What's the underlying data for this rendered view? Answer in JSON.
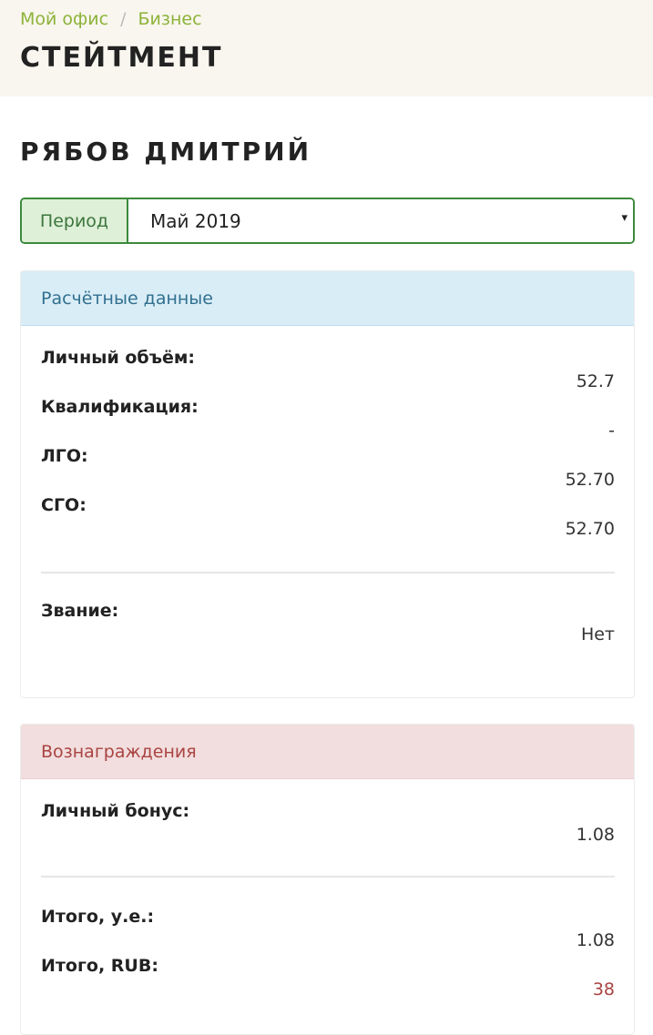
{
  "breadcrumb": {
    "items": [
      "Мой офис",
      "Бизнес"
    ],
    "separator": "/"
  },
  "page_title": "СТЕЙТМЕНТ",
  "person_name": "РЯБОВ ДМИТРИЙ",
  "period": {
    "label": "Период",
    "selected": "Май 2019",
    "caret": "▾"
  },
  "calc_panel": {
    "title": "Расчётные данные",
    "rows": [
      {
        "label": "Личный объём:",
        "value": "52.7"
      },
      {
        "label": "Квалификация:",
        "value": "-"
      },
      {
        "label": "ЛГО:",
        "value": "52.70"
      },
      {
        "label": "СГО:",
        "value": "52.70"
      }
    ],
    "rank": {
      "label": "Звание:",
      "value": "Нет"
    }
  },
  "rewards_panel": {
    "title": "Вознаграждения",
    "personal_bonus": {
      "label": "Личный бонус:",
      "value": "1.08"
    },
    "totals": [
      {
        "label": "Итого, у.е.:",
        "value": "1.08"
      },
      {
        "label": "Итого, RUB:",
        "value": "38"
      }
    ]
  },
  "colors": {
    "breadcrumb_link": "#8db33a",
    "period_border": "#3c8a3c",
    "info_heading_bg": "#d9edf7",
    "danger_heading_bg": "#f2dede",
    "total_rub_value": "#a94442"
  }
}
